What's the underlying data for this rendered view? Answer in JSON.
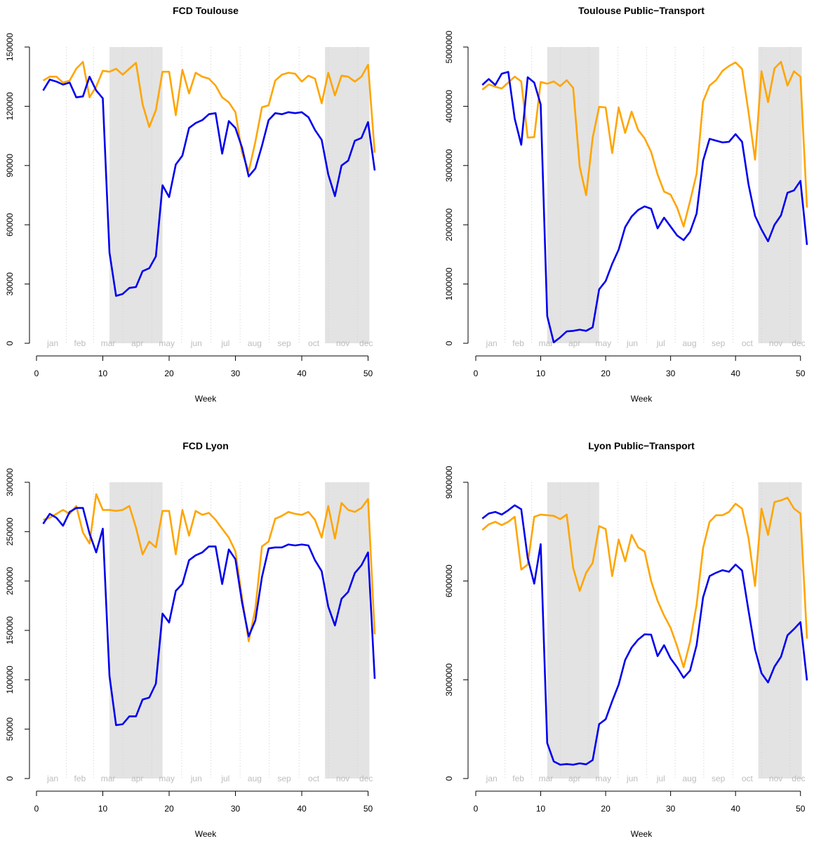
{
  "colors": {
    "series_2020": "#0000ee",
    "series_2019": "#ffa500",
    "shade": "#e3e3e3",
    "month_label": "#bdbdbd",
    "month_line": "#cfcfcf"
  },
  "chart_data": [
    {
      "type": "line",
      "title": "FCD Toulouse",
      "xlabel": "Week",
      "ylabel": "",
      "xlim": [
        0,
        51
      ],
      "xticks": [
        0,
        10,
        20,
        30,
        40,
        50
      ],
      "ylim": [
        0,
        150000
      ],
      "yticks": [
        "0",
        "30000",
        "60000",
        "90000",
        "120000",
        "150000"
      ],
      "shaded_weeks": [
        [
          11,
          19
        ],
        [
          43.5,
          50.2
        ]
      ],
      "months": [
        "jan",
        "feb",
        "mar",
        "apr",
        "may",
        "jun",
        "jul",
        "aug",
        "sep",
        "oct",
        "nov",
        "dec"
      ],
      "month_bounds": [
        4.5,
        8.6,
        13,
        17.4,
        21.9,
        26.3,
        30.7,
        35.1,
        39.6,
        44,
        48.4
      ],
      "x": [
        1,
        2,
        3,
        4,
        5,
        6,
        7,
        8,
        9,
        10,
        11,
        12,
        13,
        14,
        15,
        16,
        17,
        18,
        19,
        20,
        21,
        22,
        23,
        24,
        25,
        26,
        27,
        28,
        29,
        30,
        31,
        32,
        33,
        34,
        35,
        36,
        37,
        38,
        39,
        40,
        41,
        42,
        43,
        44,
        45,
        46,
        47,
        48,
        49,
        50,
        51
      ],
      "series": [
        {
          "color": "orange",
          "values": [
            133000,
            135000,
            135000,
            132000,
            133000,
            139000,
            142500,
            124500,
            130000,
            138000,
            137500,
            139000,
            136000,
            139000,
            142000,
            121000,
            109500,
            118000,
            137500,
            137500,
            115500,
            138500,
            126500,
            137000,
            135000,
            134000,
            130500,
            124500,
            122000,
            117000,
            96500,
            87000,
            102000,
            119500,
            120500,
            133000,
            136000,
            137000,
            136500,
            132500,
            135500,
            134000,
            121500,
            137000,
            125500,
            135500,
            135000,
            132500,
            135000,
            141000,
            96500
          ]
        },
        {
          "color": "blue",
          "values": [
            128000,
            133500,
            132500,
            131000,
            132000,
            124500,
            125000,
            135000,
            128000,
            124000,
            46000,
            24000,
            25000,
            28000,
            28500,
            36500,
            38000,
            44000,
            80000,
            74000,
            90500,
            95000,
            109000,
            111500,
            113000,
            116000,
            116500,
            96000,
            112500,
            109000,
            99000,
            84500,
            88500,
            100000,
            113000,
            116500,
            116000,
            117000,
            116500,
            117000,
            114500,
            108000,
            103000,
            85500,
            74500,
            90000,
            92500,
            102500,
            104000,
            112000,
            87500
          ]
        }
      ]
    },
    {
      "type": "line",
      "title": "Toulouse Public−Transport",
      "xlabel": "Week",
      "ylabel": "",
      "xlim": [
        0,
        51
      ],
      "xticks": [
        0,
        10,
        20,
        30,
        40,
        50
      ],
      "ylim": [
        0,
        5000000
      ],
      "yticks": [
        "0",
        "1000000",
        "2000000",
        "3000000",
        "4000000",
        "5000000"
      ],
      "shaded_weeks": [
        [
          11,
          19
        ],
        [
          43.5,
          50.2
        ]
      ],
      "months": [
        "jan",
        "feb",
        "mar",
        "apr",
        "may",
        "jun",
        "jul",
        "aug",
        "sep",
        "oct",
        "nov",
        "dec"
      ],
      "month_bounds": [
        4.5,
        8.6,
        13,
        17.4,
        21.9,
        26.3,
        30.7,
        35.1,
        39.6,
        44,
        48.4
      ],
      "x": [
        1,
        2,
        3,
        4,
        5,
        6,
        7,
        8,
        9,
        10,
        11,
        12,
        13,
        14,
        15,
        16,
        17,
        18,
        19,
        20,
        21,
        22,
        23,
        24,
        25,
        26,
        27,
        28,
        29,
        30,
        31,
        32,
        33,
        34,
        35,
        36,
        37,
        38,
        39,
        40,
        41,
        42,
        43,
        44,
        45,
        46,
        47,
        48,
        49,
        50,
        51
      ],
      "series": [
        {
          "color": "orange",
          "values": [
            4280000,
            4370000,
            4330000,
            4300000,
            4400000,
            4500000,
            4420000,
            3470000,
            3480000,
            4410000,
            4380000,
            4420000,
            4340000,
            4440000,
            4310000,
            2980000,
            2500000,
            3470000,
            3990000,
            3980000,
            3210000,
            3980000,
            3550000,
            3910000,
            3600000,
            3460000,
            3230000,
            2850000,
            2560000,
            2510000,
            2290000,
            1970000,
            2400000,
            2860000,
            4080000,
            4350000,
            4440000,
            4600000,
            4680000,
            4740000,
            4630000,
            3900000,
            3100000,
            4590000,
            4070000,
            4640000,
            4750000,
            4350000,
            4590000,
            4500000,
            2290000
          ]
        },
        {
          "color": "blue",
          "values": [
            4360000,
            4460000,
            4360000,
            4550000,
            4580000,
            3790000,
            3350000,
            4490000,
            4400000,
            4030000,
            460000,
            15000,
            100000,
            200000,
            210000,
            230000,
            210000,
            270000,
            910000,
            1050000,
            1340000,
            1580000,
            1960000,
            2140000,
            2250000,
            2310000,
            2270000,
            1940000,
            2120000,
            1970000,
            1820000,
            1740000,
            1880000,
            2190000,
            3080000,
            3450000,
            3420000,
            3390000,
            3400000,
            3530000,
            3400000,
            2680000,
            2150000,
            1920000,
            1720000,
            2000000,
            2160000,
            2540000,
            2580000,
            2740000,
            1660000
          ]
        }
      ]
    },
    {
      "type": "line",
      "title": "FCD Lyon",
      "xlabel": "Week",
      "ylabel": "",
      "xlim": [
        0,
        51
      ],
      "xticks": [
        0,
        10,
        20,
        30,
        40,
        50
      ],
      "ylim": [
        0,
        300000
      ],
      "yticks": [
        "0",
        "50000",
        "100000",
        "150000",
        "200000",
        "250000",
        "300000"
      ],
      "shaded_weeks": [
        [
          11,
          19
        ],
        [
          43.5,
          50.2
        ]
      ],
      "months": [
        "jan",
        "feb",
        "mar",
        "apr",
        "may",
        "jun",
        "jul",
        "aug",
        "sep",
        "oct",
        "nov",
        "dec"
      ],
      "month_bounds": [
        4.5,
        8.6,
        13,
        17.4,
        21.9,
        26.3,
        30.7,
        35.1,
        39.6,
        44,
        48.4
      ],
      "x": [
        1,
        2,
        3,
        4,
        5,
        6,
        7,
        8,
        9,
        10,
        11,
        12,
        13,
        14,
        15,
        16,
        17,
        18,
        19,
        20,
        21,
        22,
        23,
        24,
        25,
        26,
        27,
        28,
        29,
        30,
        31,
        32,
        33,
        34,
        35,
        36,
        37,
        38,
        39,
        40,
        41,
        42,
        43,
        44,
        45,
        46,
        47,
        48,
        49,
        50,
        51
      ],
      "series": [
        {
          "color": "orange",
          "values": [
            262000,
            264000,
            268000,
            272000,
            268000,
            276000,
            249000,
            238000,
            288000,
            272000,
            272000,
            271000,
            272000,
            276000,
            254000,
            227000,
            240000,
            234000,
            271000,
            271000,
            227000,
            272000,
            246000,
            271000,
            267000,
            269000,
            262000,
            253000,
            244000,
            230000,
            183000,
            139000,
            172000,
            235000,
            240000,
            263000,
            266000,
            270000,
            268000,
            267000,
            270000,
            262000,
            244000,
            276000,
            243000,
            279000,
            272000,
            270000,
            274000,
            283000,
            146000
          ]
        },
        {
          "color": "blue",
          "values": [
            258000,
            268000,
            264000,
            256000,
            270000,
            274000,
            274000,
            248000,
            229000,
            253000,
            104000,
            54000,
            55000,
            63000,
            63000,
            80000,
            82000,
            96000,
            167000,
            158000,
            190000,
            197000,
            221000,
            226000,
            229000,
            235000,
            235000,
            197000,
            232000,
            222000,
            178000,
            144000,
            160000,
            204000,
            233000,
            234000,
            234000,
            237000,
            236000,
            237000,
            236000,
            221000,
            210000,
            174000,
            155000,
            182000,
            189000,
            208000,
            216000,
            229000,
            101000
          ]
        }
      ]
    },
    {
      "type": "line",
      "title": "Lyon Public−Transport",
      "xlabel": "Week",
      "ylabel": "",
      "xlim": [
        0,
        51
      ],
      "xticks": [
        0,
        10,
        20,
        30,
        40,
        50
      ],
      "ylim": [
        0,
        9000000
      ],
      "yticks": [
        "0",
        "3000000",
        "6000000",
        "9000000"
      ],
      "shaded_weeks": [
        [
          11,
          19
        ],
        [
          43.5,
          50.2
        ]
      ],
      "months": [
        "jan",
        "feb",
        "mar",
        "apr",
        "may",
        "jun",
        "jul",
        "aug",
        "sep",
        "oct",
        "nov",
        "dec"
      ],
      "month_bounds": [
        4.5,
        8.6,
        13,
        17.4,
        21.9,
        26.3,
        30.7,
        35.1,
        39.6,
        44,
        48.4
      ],
      "x": [
        1,
        2,
        3,
        4,
        5,
        6,
        7,
        8,
        9,
        10,
        11,
        12,
        13,
        14,
        15,
        16,
        17,
        18,
        19,
        20,
        21,
        22,
        23,
        24,
        25,
        26,
        27,
        28,
        29,
        30,
        31,
        32,
        33,
        34,
        35,
        36,
        37,
        38,
        39,
        40,
        41,
        42,
        43,
        44,
        45,
        46,
        47,
        48,
        49,
        50,
        51
      ],
      "series": [
        {
          "color": "orange",
          "values": [
            7550000,
            7720000,
            7800000,
            7700000,
            7800000,
            7950000,
            6350000,
            6500000,
            7950000,
            8020000,
            8000000,
            7980000,
            7880000,
            8020000,
            6400000,
            5700000,
            6250000,
            6550000,
            7670000,
            7580000,
            6150000,
            7260000,
            6600000,
            7400000,
            7020000,
            6900000,
            6000000,
            5400000,
            4950000,
            4580000,
            4020000,
            3380000,
            4150000,
            5280000,
            7000000,
            7800000,
            8000000,
            8000000,
            8100000,
            8350000,
            8200000,
            7300000,
            5850000,
            8200000,
            7400000,
            8400000,
            8450000,
            8530000,
            8200000,
            8050000,
            4250000
          ]
        },
        {
          "color": "blue",
          "values": [
            7900000,
            8050000,
            8100000,
            8020000,
            8150000,
            8300000,
            8180000,
            6700000,
            5920000,
            7120000,
            1080000,
            520000,
            420000,
            440000,
            420000,
            460000,
            430000,
            560000,
            1650000,
            1800000,
            2350000,
            2850000,
            3600000,
            3980000,
            4220000,
            4380000,
            4370000,
            3720000,
            4050000,
            3650000,
            3380000,
            3060000,
            3280000,
            4050000,
            5500000,
            6150000,
            6250000,
            6330000,
            6280000,
            6500000,
            6320000,
            5100000,
            3920000,
            3200000,
            2920000,
            3400000,
            3700000,
            4350000,
            4540000,
            4750000,
            2980000
          ]
        }
      ]
    }
  ]
}
